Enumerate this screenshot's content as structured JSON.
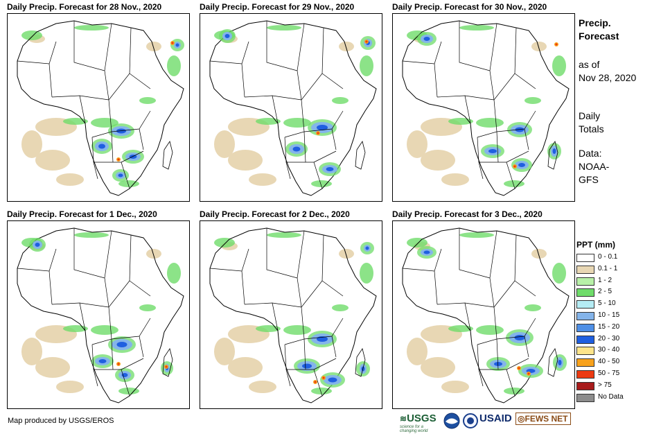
{
  "panels": [
    {
      "title": "Daily Precip. Forecast for 28 Nov., 2020"
    },
    {
      "title": "Daily Precip. Forecast for 29 Nov., 2020"
    },
    {
      "title": "Daily Precip. Forecast for 30 Nov., 2020"
    },
    {
      "title": "Daily Precip. Forecast for 1 Dec., 2020"
    },
    {
      "title": "Daily Precip. Forecast for 2 Dec., 2020"
    },
    {
      "title": "Daily Precip. Forecast for 3 Dec., 2020"
    }
  ],
  "sidebar": {
    "heading_line1": "Precip.",
    "heading_line2": "Forecast",
    "asof_line1": "as of",
    "asof_line2": "Nov 28, 2020",
    "totals_line1": "Daily",
    "totals_line2": "Totals",
    "data_line1": "Data:",
    "data_line2": "NOAA-",
    "data_line3": "GFS"
  },
  "legend": {
    "title": "PPT (mm)",
    "items": [
      {
        "label": "0 - 0.1",
        "color": "#ffffff"
      },
      {
        "label": "0.1 - 1",
        "color": "#e8d7b4"
      },
      {
        "label": "1 - 2",
        "color": "#b8f0a8"
      },
      {
        "label": "2 - 5",
        "color": "#6fdc6a"
      },
      {
        "label": "5 - 10",
        "color": "#b5ecf4"
      },
      {
        "label": "10 - 15",
        "color": "#84b4ea"
      },
      {
        "label": "15 - 20",
        "color": "#4e8fe6"
      },
      {
        "label": "20 - 30",
        "color": "#1f5fe0"
      },
      {
        "label": "30 - 40",
        "color": "#fde48a"
      },
      {
        "label": "40 - 50",
        "color": "#f8a21c"
      },
      {
        "label": "50 - 75",
        "color": "#ec3a12"
      },
      {
        "label": "> 75",
        "color": "#a81c1c"
      },
      {
        "label": "No Data",
        "color": "#8c8c8c"
      }
    ]
  },
  "footer": {
    "credit": "Map produced by USGS/EROS",
    "logos": {
      "usgs": "USGS",
      "usgs_tagline": "science for a changing world",
      "usaid": "USAID",
      "fewsnet": "FEWS NET"
    }
  }
}
